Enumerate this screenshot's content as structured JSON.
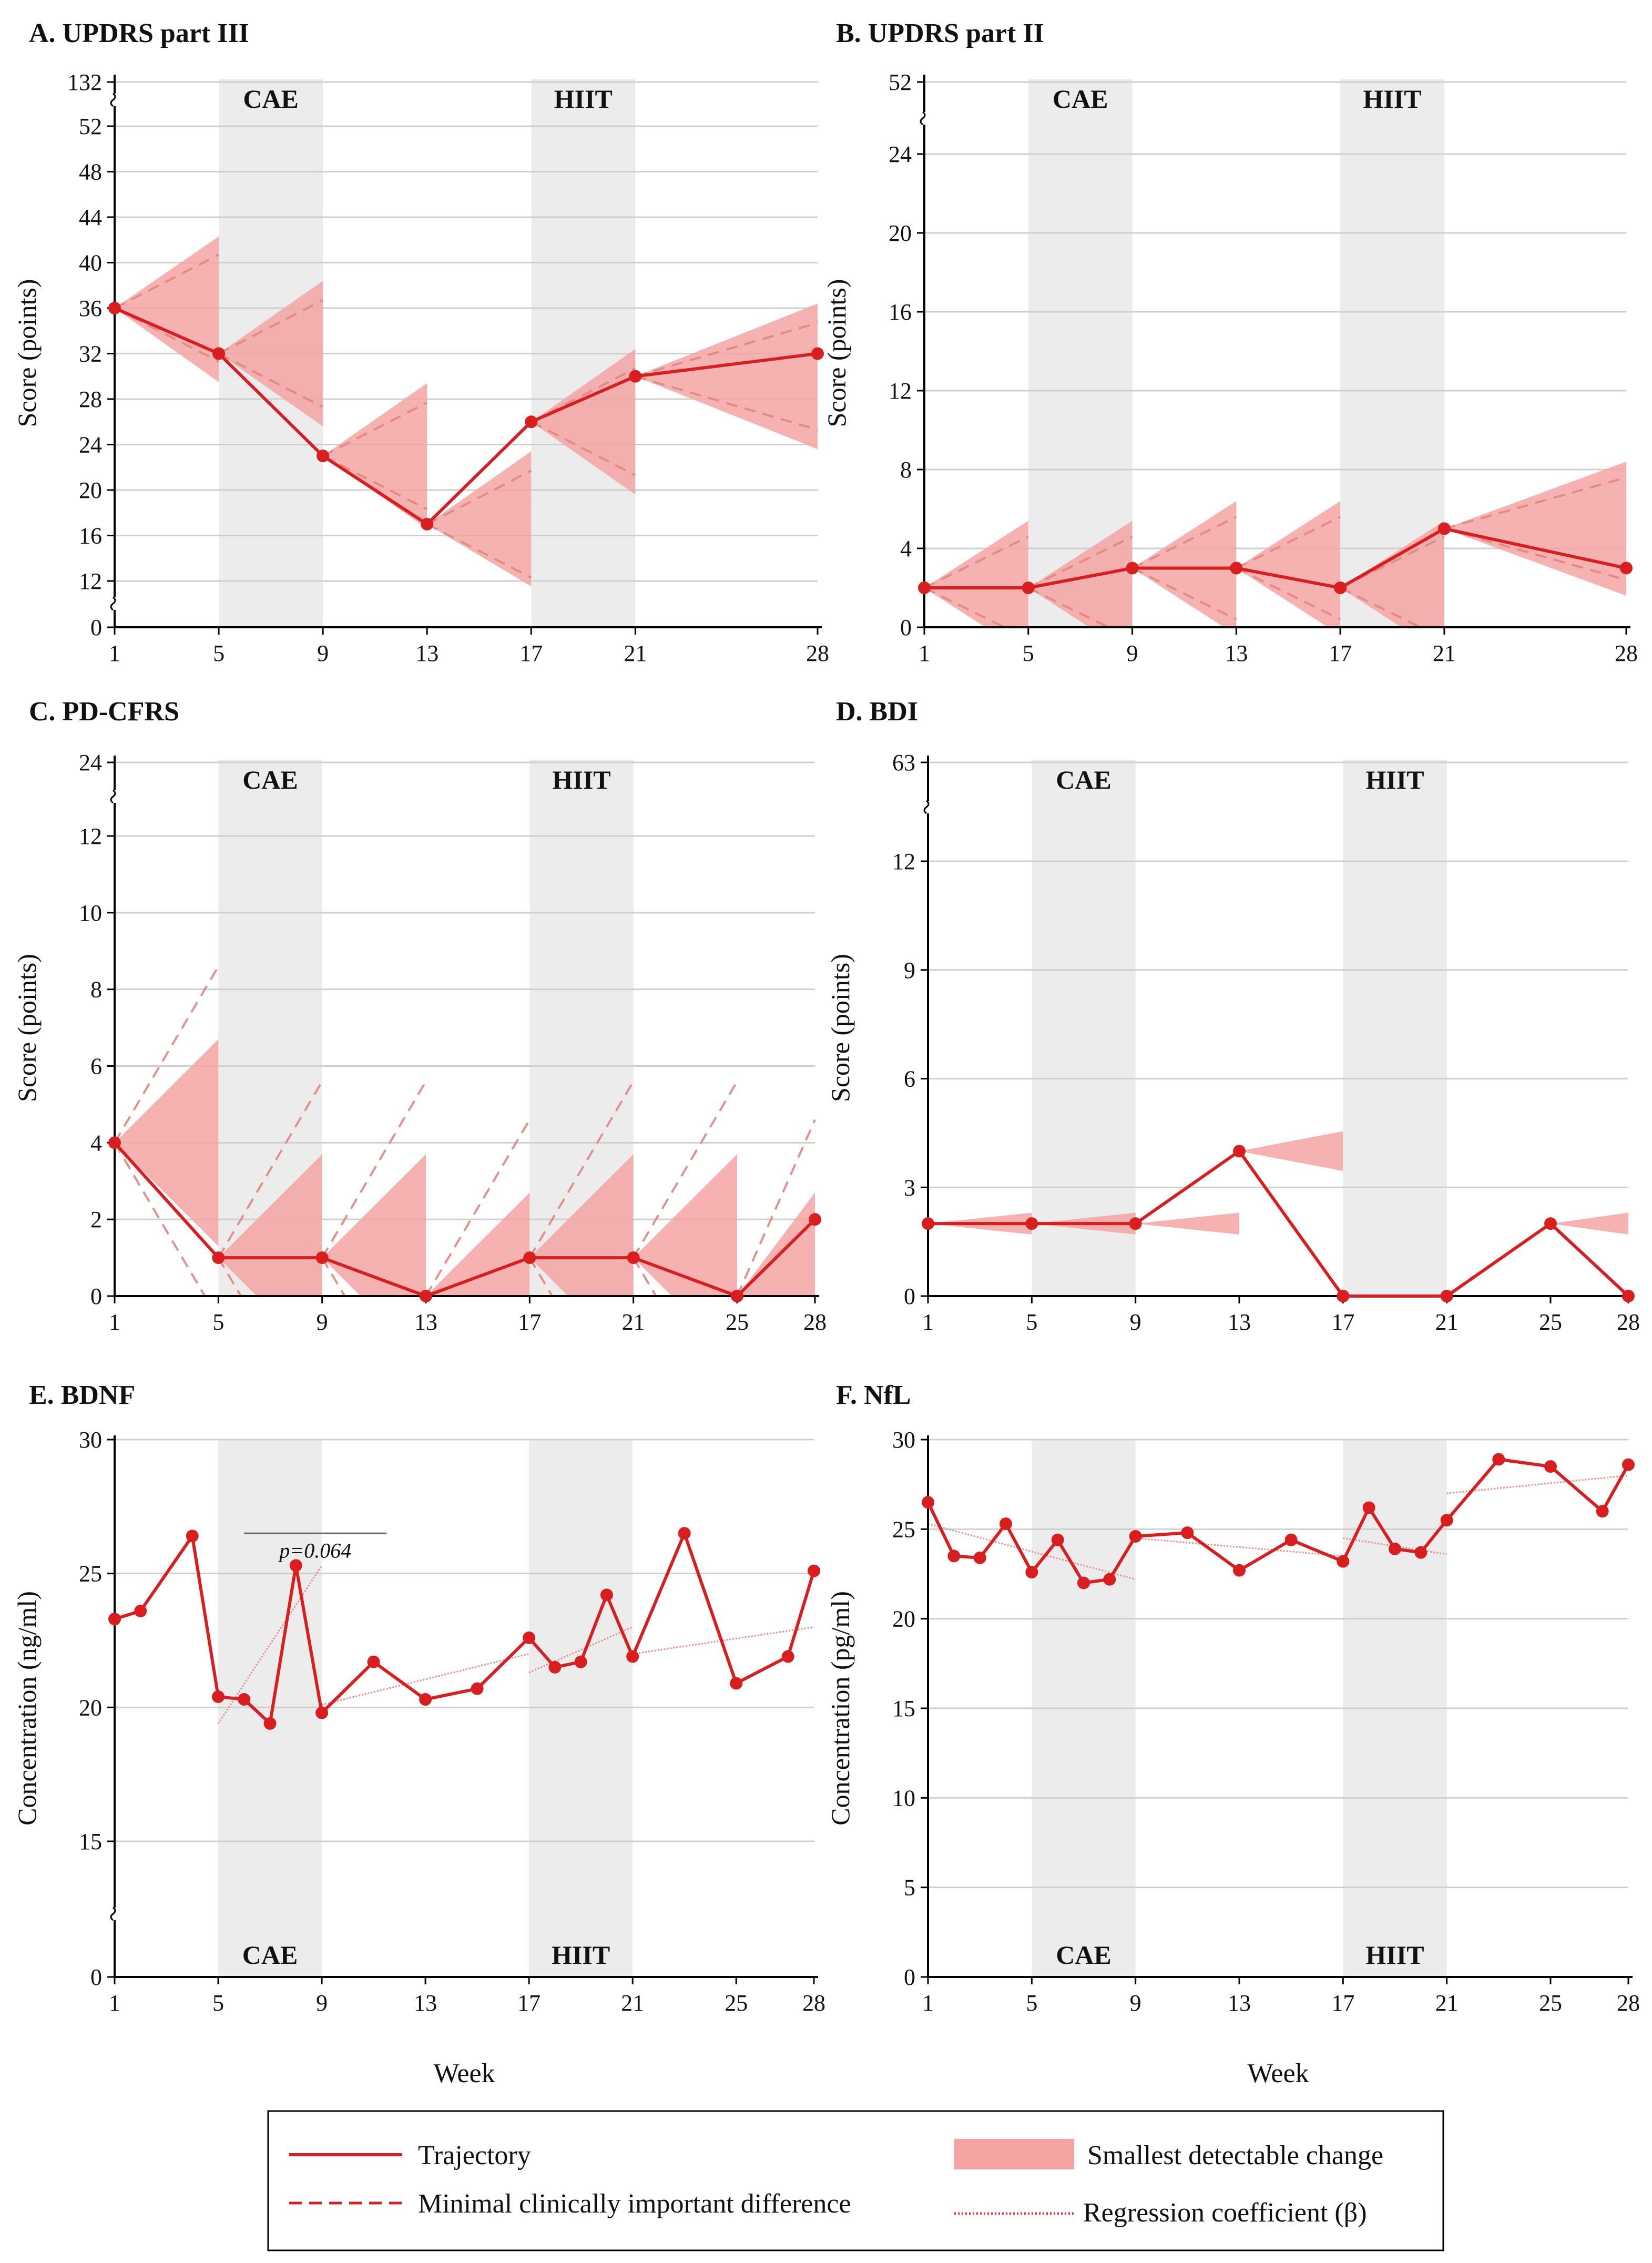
{
  "colors": {
    "trajectory": "#d81e1e",
    "sdc_fill": "#f4a3a3",
    "mcid": "#e3867f",
    "band": "#ececec",
    "grid": "#cfcfcf",
    "axis": "#000000"
  },
  "legend": {
    "trajectory": "Trajectory",
    "mcid": "Minimal clinically important difference",
    "sdc": "Smallest detectable change",
    "regression": "Regression coefficient (β)"
  },
  "chart_data": [
    {
      "id": "A",
      "type": "line",
      "title": "A. UPDRS part III",
      "ylabel": "Score (points)",
      "xlabel": "",
      "x_ticks": [
        "1",
        "5",
        "9",
        "13",
        "17",
        "21",
        "28"
      ],
      "y_ticks": [
        "0",
        "12",
        "16",
        "20",
        "24",
        "28",
        "32",
        "36",
        "40",
        "44",
        "48",
        "52",
        "132"
      ],
      "bands": [
        {
          "label": "CAE",
          "from": 5,
          "to": 9
        },
        {
          "label": "HIIT",
          "from": 17,
          "to": 21
        }
      ],
      "band_label_position": "top",
      "series": [
        {
          "x": [
            1,
            5,
            9,
            13,
            17,
            21,
            28
          ],
          "y": [
            36,
            32,
            23,
            17,
            26,
            30,
            32
          ]
        }
      ],
      "sdc_wedges": [
        {
          "x0": 1,
          "y0": 36,
          "x1": 5,
          "lo": 29.5,
          "hi": 42.3
        },
        {
          "x0": 5,
          "y0": 32,
          "x1": 9,
          "lo": 25.6,
          "hi": 38.4
        },
        {
          "x0": 9,
          "y0": 23,
          "x1": 13,
          "lo": 16.6,
          "hi": 29.4
        },
        {
          "x0": 13,
          "y0": 17,
          "x1": 17,
          "lo": 10.6,
          "hi": 23.4
        },
        {
          "x0": 17,
          "y0": 26,
          "x1": 21,
          "lo": 19.6,
          "hi": 32.4
        },
        {
          "x0": 21,
          "y0": 30,
          "x1": 28,
          "lo": 23.6,
          "hi": 36.4
        }
      ],
      "mcid_lines": [
        {
          "x0": 1,
          "y0": 36,
          "x1": 5,
          "lo": 31.3,
          "hi": 40.7
        },
        {
          "x0": 5,
          "y0": 32,
          "x1": 9,
          "lo": 27.3,
          "hi": 36.7
        },
        {
          "x0": 9,
          "y0": 23,
          "x1": 13,
          "lo": 18.3,
          "hi": 27.7
        },
        {
          "x0": 13,
          "y0": 17,
          "x1": 17,
          "lo": 12.3,
          "hi": 21.7
        },
        {
          "x0": 17,
          "y0": 26,
          "x1": 21,
          "lo": 21.3,
          "hi": 30.7
        },
        {
          "x0": 21,
          "y0": 30,
          "x1": 28,
          "lo": 25.3,
          "hi": 34.7
        }
      ]
    },
    {
      "id": "B",
      "type": "line",
      "title": "B. UPDRS part II",
      "ylabel": "Score (points)",
      "xlabel": "",
      "x_ticks": [
        "1",
        "5",
        "9",
        "13",
        "17",
        "21",
        "28"
      ],
      "y_ticks": [
        "0",
        "4",
        "8",
        "12",
        "16",
        "20",
        "24",
        "52"
      ],
      "bands": [
        {
          "label": "CAE",
          "from": 5,
          "to": 9
        },
        {
          "label": "HIIT",
          "from": 17,
          "to": 21
        }
      ],
      "band_label_position": "top",
      "series": [
        {
          "x": [
            1,
            5,
            9,
            13,
            17,
            21,
            28
          ],
          "y": [
            2,
            2,
            3,
            3,
            2,
            5,
            3
          ]
        }
      ],
      "sdc_wedges": [
        {
          "x0": 1,
          "y0": 2,
          "x1": 5,
          "lo": -1.4,
          "hi": 5.4
        },
        {
          "x0": 5,
          "y0": 2,
          "x1": 9,
          "lo": -1.4,
          "hi": 5.4
        },
        {
          "x0": 9,
          "y0": 3,
          "x1": 13,
          "lo": -0.4,
          "hi": 6.4
        },
        {
          "x0": 13,
          "y0": 3,
          "x1": 17,
          "lo": -0.4,
          "hi": 6.4
        },
        {
          "x0": 17,
          "y0": 2,
          "x1": 21,
          "lo": -1.4,
          "hi": 5.4
        },
        {
          "x0": 21,
          "y0": 5,
          "x1": 28,
          "lo": 1.6,
          "hi": 8.4
        }
      ],
      "mcid_lines": [
        {
          "x0": 1,
          "y0": 2,
          "x1": 5,
          "lo": -0.6,
          "hi": 4.6
        },
        {
          "x0": 5,
          "y0": 2,
          "x1": 9,
          "lo": -0.6,
          "hi": 4.6
        },
        {
          "x0": 9,
          "y0": 3,
          "x1": 13,
          "lo": 0.4,
          "hi": 5.6
        },
        {
          "x0": 13,
          "y0": 3,
          "x1": 17,
          "lo": 0.4,
          "hi": 5.6
        },
        {
          "x0": 17,
          "y0": 2,
          "x1": 21,
          "lo": -0.6,
          "hi": 4.6
        },
        {
          "x0": 21,
          "y0": 5,
          "x1": 28,
          "lo": 2.4,
          "hi": 7.6
        }
      ]
    },
    {
      "id": "C",
      "type": "line",
      "title": "C. PD-CFRS",
      "ylabel": "Score (points)",
      "xlabel": "",
      "x_ticks": [
        "1",
        "5",
        "9",
        "13",
        "17",
        "21",
        "25",
        "28"
      ],
      "y_ticks": [
        "0",
        "2",
        "4",
        "6",
        "8",
        "10",
        "12",
        "24"
      ],
      "bands": [
        {
          "label": "CAE",
          "from": 5,
          "to": 9
        },
        {
          "label": "HIIT",
          "from": 17,
          "to": 21
        }
      ],
      "band_label_position": "top",
      "series": [
        {
          "x": [
            1,
            5,
            9,
            13,
            17,
            21,
            25,
            28
          ],
          "y": [
            4,
            1,
            1,
            0,
            1,
            1,
            0,
            2
          ]
        }
      ],
      "sdc_wedges": [
        {
          "x0": 1,
          "y0": 4,
          "x1": 5,
          "lo": 1.3,
          "hi": 6.7
        },
        {
          "x0": 5,
          "y0": 1,
          "x1": 9,
          "lo": -1.7,
          "hi": 3.7
        },
        {
          "x0": 9,
          "y0": 1,
          "x1": 13,
          "lo": -1.7,
          "hi": 3.7
        },
        {
          "x0": 13,
          "y0": 0,
          "x1": 17,
          "lo": -2.7,
          "hi": 2.7
        },
        {
          "x0": 17,
          "y0": 1,
          "x1": 21,
          "lo": -1.7,
          "hi": 3.7
        },
        {
          "x0": 21,
          "y0": 1,
          "x1": 25,
          "lo": -1.7,
          "hi": 3.7
        },
        {
          "x0": 25,
          "y0": 0,
          "x1": 28,
          "lo": -2.7,
          "hi": 2.7
        }
      ],
      "mcid_lines": [
        {
          "x0": 1,
          "y0": 4,
          "x1": 5,
          "lo": -0.6,
          "hi": 8.6
        },
        {
          "x0": 5,
          "y0": 1,
          "x1": 9,
          "lo": -3.6,
          "hi": 5.6
        },
        {
          "x0": 9,
          "y0": 1,
          "x1": 13,
          "lo": -3.6,
          "hi": 5.6
        },
        {
          "x0": 13,
          "y0": 0,
          "x1": 17,
          "lo": -4.6,
          "hi": 4.6
        },
        {
          "x0": 17,
          "y0": 1,
          "x1": 21,
          "lo": -3.6,
          "hi": 5.6
        },
        {
          "x0": 21,
          "y0": 1,
          "x1": 25,
          "lo": -3.6,
          "hi": 5.6
        },
        {
          "x0": 25,
          "y0": 0,
          "x1": 28,
          "lo": -4.6,
          "hi": 4.6
        }
      ]
    },
    {
      "id": "D",
      "type": "line",
      "title": "D. BDI",
      "ylabel": "Score (points)",
      "xlabel": "",
      "x_ticks": [
        "1",
        "5",
        "9",
        "13",
        "17",
        "21",
        "25",
        "28"
      ],
      "y_ticks": [
        "0",
        "3",
        "6",
        "9",
        "12",
        "63"
      ],
      "bands": [
        {
          "label": "CAE",
          "from": 5,
          "to": 9
        },
        {
          "label": "HIIT",
          "from": 17,
          "to": 21
        }
      ],
      "band_label_position": "top",
      "series": [
        {
          "x": [
            1,
            5,
            9,
            13,
            17,
            21,
            25,
            28
          ],
          "y": [
            2,
            2,
            2,
            4,
            0,
            0,
            2,
            0
          ]
        }
      ],
      "sdc_wedges": [
        {
          "x0": 1,
          "y0": 2,
          "x1": 5,
          "lo": 1.7,
          "hi": 2.3
        },
        {
          "x0": 5,
          "y0": 2,
          "x1": 9,
          "lo": 1.7,
          "hi": 2.3
        },
        {
          "x0": 9,
          "y0": 2,
          "x1": 13,
          "lo": 1.7,
          "hi": 2.3
        },
        {
          "x0": 13,
          "y0": 4,
          "x1": 17,
          "lo": 3.45,
          "hi": 4.55
        },
        {
          "x0": 25,
          "y0": 2,
          "x1": 28,
          "lo": 1.7,
          "hi": 2.3
        }
      ],
      "mcid_lines": []
    },
    {
      "id": "E",
      "type": "line",
      "title": "E. BDNF",
      "ylabel": "Concentration (ng/ml)",
      "xlabel": "Week",
      "x_ticks": [
        "1",
        "5",
        "9",
        "13",
        "17",
        "21",
        "25",
        "28"
      ],
      "y_ticks": [
        "0",
        "15",
        "20",
        "25",
        "30"
      ],
      "bands": [
        {
          "label": "CAE",
          "from": 5,
          "to": 9
        },
        {
          "label": "HIIT",
          "from": 17,
          "to": 21
        }
      ],
      "band_label_position": "bottom",
      "series": [
        {
          "x": [
            1,
            2,
            4,
            5,
            6,
            7,
            8,
            9,
            11,
            13,
            15,
            17,
            18,
            19,
            20,
            21,
            23,
            25,
            27,
            28
          ],
          "y": [
            23.3,
            23.6,
            26.4,
            20.4,
            20.3,
            19.4,
            25.3,
            19.8,
            21.7,
            20.3,
            20.7,
            22.6,
            21.5,
            21.7,
            24.2,
            21.9,
            26.5,
            20.9,
            21.9,
            25.1
          ]
        }
      ],
      "regression_lines": [
        {
          "x0": 5,
          "y0": 19.4,
          "x1": 9,
          "y1": 25.3
        },
        {
          "x0": 9,
          "y0": 20.1,
          "x1": 17,
          "y1": 22.0
        },
        {
          "x0": 17,
          "y0": 21.3,
          "x1": 21,
          "y1": 23.0
        },
        {
          "x0": 21,
          "y0": 22.0,
          "x1": 28,
          "y1": 23.0
        }
      ],
      "annotation": {
        "text": "p=0.064",
        "x0": 6,
        "x1": 11.5,
        "y": 26.5
      }
    },
    {
      "id": "F",
      "type": "line",
      "title": "F. NfL",
      "ylabel": "Concentration (pg/ml)",
      "xlabel": "Week",
      "x_ticks": [
        "1",
        "5",
        "9",
        "13",
        "17",
        "21",
        "25",
        "28"
      ],
      "y_ticks": [
        "0",
        "5",
        "10",
        "15",
        "20",
        "25",
        "30"
      ],
      "bands": [
        {
          "label": "CAE",
          "from": 5,
          "to": 9
        },
        {
          "label": "HIIT",
          "from": 17,
          "to": 21
        }
      ],
      "band_label_position": "bottom",
      "series": [
        {
          "x": [
            1,
            2,
            3,
            4,
            5,
            6,
            7,
            8,
            9,
            11,
            13,
            15,
            17,
            18,
            19,
            20,
            21,
            23,
            25,
            27,
            28
          ],
          "y": [
            26.5,
            23.5,
            23.4,
            25.3,
            22.6,
            24.4,
            22.0,
            22.2,
            24.6,
            24.8,
            22.7,
            24.4,
            23.2,
            26.2,
            23.9,
            23.7,
            25.5,
            28.9,
            28.5,
            26.0,
            28.6
          ]
        }
      ],
      "regression_lines": [
        {
          "x0": 1,
          "y0": 25.3,
          "x1": 9,
          "y1": 22.2
        },
        {
          "x0": 9,
          "y0": 24.5,
          "x1": 17,
          "y1": 23.5
        },
        {
          "x0": 17,
          "y0": 24.5,
          "x1": 21,
          "y1": 23.6
        },
        {
          "x0": 21,
          "y0": 27.0,
          "x1": 28,
          "y1": 28.0
        }
      ]
    }
  ]
}
